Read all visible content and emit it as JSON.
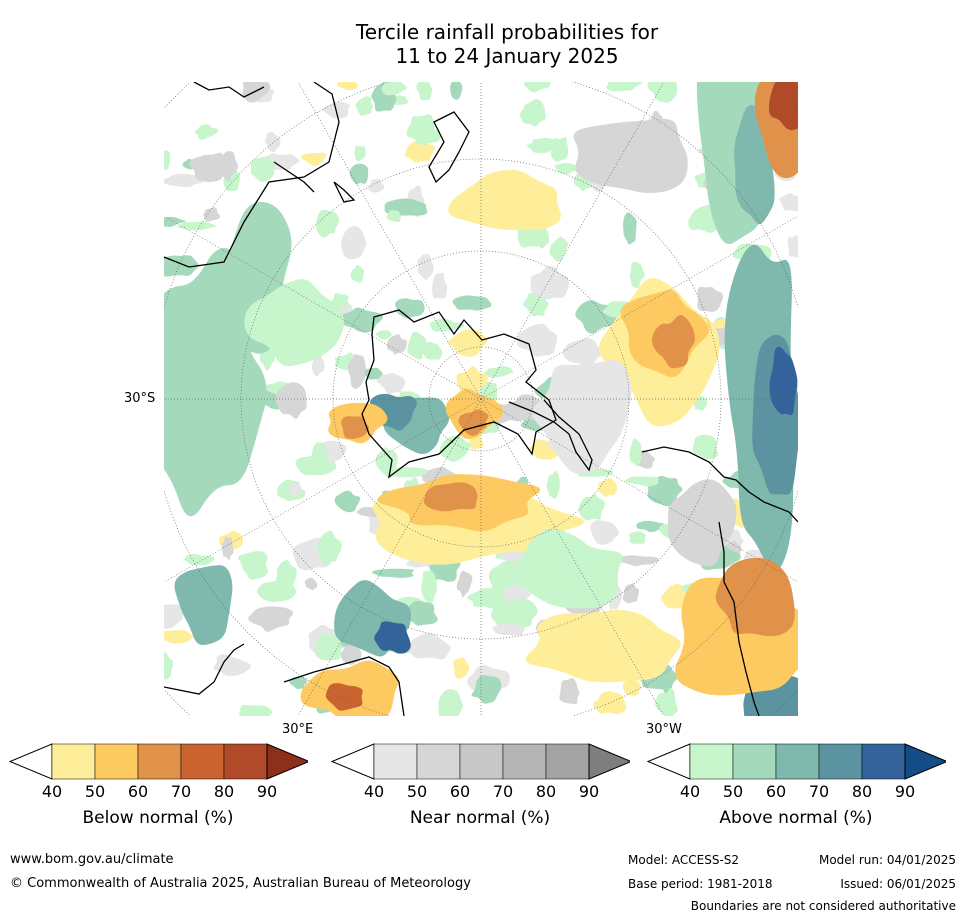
{
  "title": {
    "line1": "Tercile rainfall probabilities for",
    "line2": "11 to 24 January 2025"
  },
  "map": {
    "projection": "south-polar",
    "lat_label": "30°S",
    "lon_labels": {
      "east": "30°E",
      "west": "30°W"
    }
  },
  "legends": [
    {
      "caption": "Below normal (%)",
      "ticks": [
        "40",
        "50",
        "60",
        "70",
        "80",
        "90"
      ],
      "colors": [
        "#ffee99",
        "#fdc961",
        "#e0924a",
        "#c96431",
        "#b04a28",
        "#8c2f1b"
      ]
    },
    {
      "caption": "Near normal (%)",
      "ticks": [
        "40",
        "50",
        "60",
        "70",
        "80",
        "90"
      ],
      "colors": [
        "#e6e6e6",
        "#d6d6d6",
        "#c7c7c7",
        "#b5b5b5",
        "#a3a3a3",
        "#7e7e7e"
      ]
    },
    {
      "caption": "Above normal (%)",
      "ticks": [
        "40",
        "50",
        "60",
        "70",
        "80",
        "90"
      ],
      "colors": [
        "#c7f5cc",
        "#a5d9bc",
        "#7fb8ad",
        "#5c93a0",
        "#33639a",
        "#134c87"
      ]
    }
  ],
  "footer": {
    "website": "www.bom.gov.au/climate",
    "copyright": "© Commonwealth of Australia 2025, Australian Bureau of Meteorology",
    "model": "Model: ACCESS-S2",
    "base_period": "Base period: 1981-2018",
    "model_run": "Model run: 04/01/2025",
    "issued": "Issued: 06/01/2025",
    "disclaimer": "Boundaries are not considered authoritative"
  }
}
